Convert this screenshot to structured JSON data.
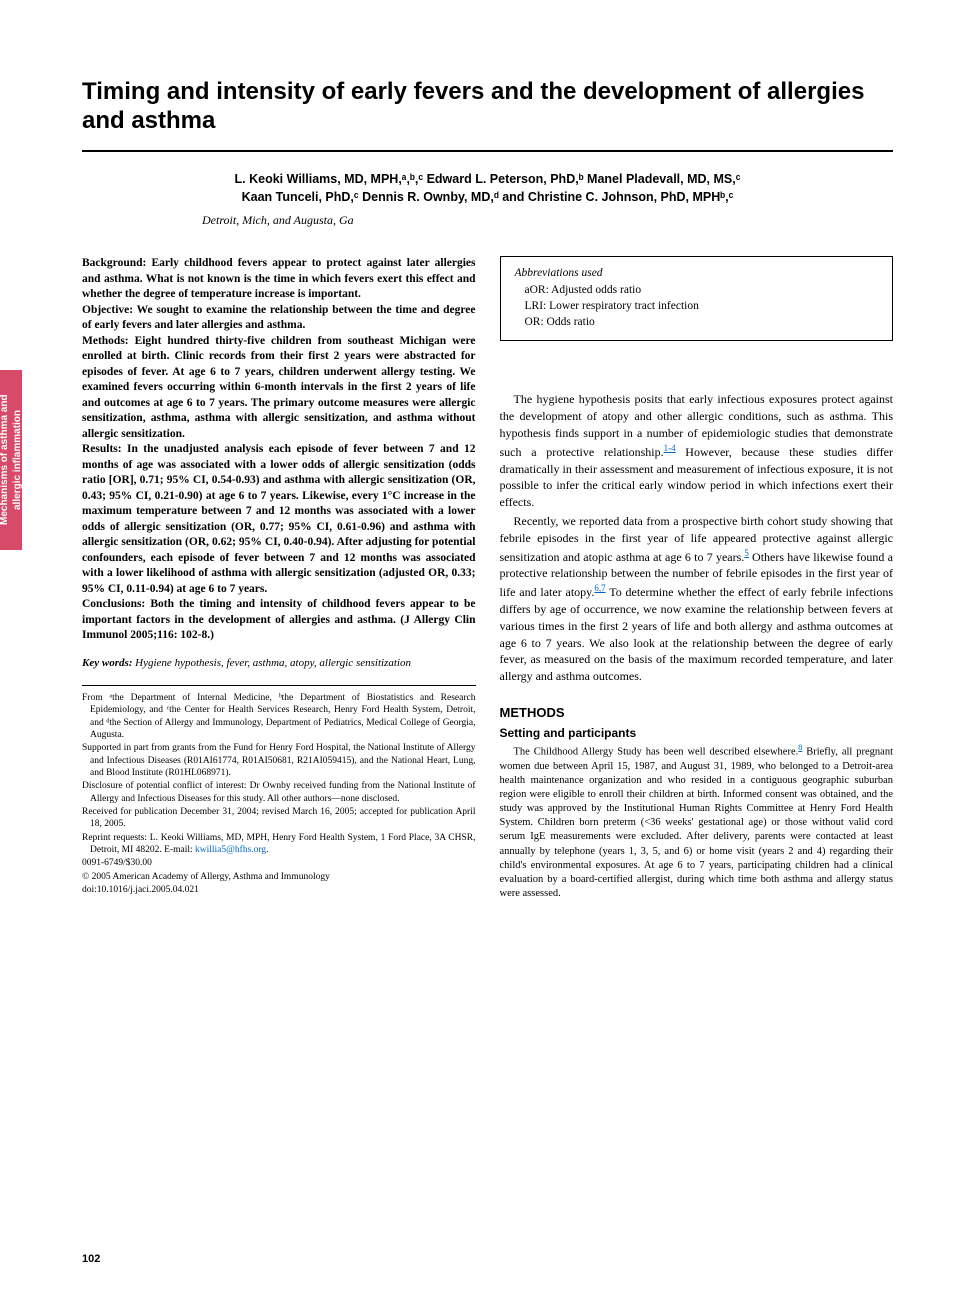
{
  "sideTab": "Mechanisms of asthma and allergic inflammation",
  "title": "Timing and intensity of early fevers and the development of allergies and asthma",
  "authorsLine1": "L. Keoki Williams, MD, MPH,ᵃ,ᵇ,ᶜ Edward L. Peterson, PhD,ᵇ Manel Pladevall, MD, MS,ᶜ",
  "authorsLine2": "Kaan Tunceli, PhD,ᶜ Dennis R. Ownby, MD,ᵈ and Christine C. Johnson, PhD, MPHᵇ,ᶜ",
  "locations": "Detroit, Mich, and Augusta, Ga",
  "abstract": {
    "background": "Background: Early childhood fevers appear to protect against later allergies and asthma. What is not known is the time in which fevers exert this effect and whether the degree of temperature increase is important.",
    "objective": "Objective: We sought to examine the relationship between the time and degree of early fevers and later allergies and asthma.",
    "methods": "Methods: Eight hundred thirty-five children from southeast Michigan were enrolled at birth. Clinic records from their first 2 years were abstracted for episodes of fever. At age 6 to 7 years, children underwent allergy testing. We examined fevers occurring within 6-month intervals in the first 2 years of life and outcomes at age 6 to 7 years. The primary outcome measures were allergic sensitization, asthma, asthma with allergic sensitization, and asthma without allergic sensitization.",
    "results": "Results: In the unadjusted analysis each episode of fever between 7 and 12 months of age was associated with a lower odds of allergic sensitization (odds ratio [OR], 0.71; 95% CI, 0.54-0.93) and asthma with allergic sensitization (OR, 0.43; 95% CI, 0.21-0.90) at age 6 to 7 years. Likewise, every 1°C increase in the maximum temperature between 7 and 12 months was associated with a lower odds of allergic sensitization (OR, 0.77; 95% CI, 0.61-0.96) and asthma with allergic sensitization (OR, 0.62; 95% CI, 0.40-0.94). After adjusting for potential confounders, each episode of fever between 7 and 12 months was associated with a lower likelihood of asthma with allergic sensitization (adjusted OR, 0.33; 95% CI, 0.11-0.94) at age 6 to 7 years.",
    "conclusions": "Conclusions: Both the timing and intensity of childhood fevers appear to be important factors in the development of allergies and asthma. (J Allergy Clin Immunol 2005;116: 102-8.)"
  },
  "keywordsLabel": "Key words:",
  "keywordsText": " Hygiene hypothesis, fever, asthma, atopy, allergic sensitization",
  "footnotes": {
    "from": "From ᵃthe Department of Internal Medicine, ᵇthe Department of Biostatistics and Research Epidemiology, and ᶜthe Center for Health Services Research, Henry Ford Health System, Detroit, and ᵈthe Section of Allergy and Immunology, Department of Pediatrics, Medical College of Georgia, Augusta.",
    "supported": "Supported in part from grants from the Fund for Henry Ford Hospital, the National Institute of Allergy and Infectious Diseases (R01AI61774, R01AI50681, R21AI059415), and the National Heart, Lung, and Blood Institute (R01HL068971).",
    "disclosure": "Disclosure of potential conflict of interest: Dr Ownby received funding from the National Institute of Allergy and Infectious Diseases for this study. All other authors—none disclosed.",
    "received": "Received for publication December 31, 2004; revised March 16, 2005; accepted for publication April 18, 2005.",
    "reprint": "Reprint requests: L. Keoki Williams, MD, MPH, Henry Ford Health System, 1 Ford Place, 3A CHSR, Detroit, MI 48202. E-mail: ",
    "email": "kwillia5@hfhs.org",
    "code": "0091-6749/$30.00",
    "copyright": "© 2005 American Academy of Allergy, Asthma and Immunology",
    "doi": "doi:10.1016/j.jaci.2005.04.021"
  },
  "abbreviations": {
    "title": "Abbreviations used",
    "items": [
      {
        "abbr": "aOR:",
        "def": "Adjusted odds ratio"
      },
      {
        "abbr": "LRI:",
        "def": "Lower respiratory tract infection"
      },
      {
        "abbr": "OR:",
        "def": "Odds ratio"
      }
    ]
  },
  "intro": {
    "p1a": "The hygiene hypothesis posits that early infectious exposures protect against the development of atopy and other allergic conditions, such as asthma. This hypothesis finds support in a number of epidemiologic studies that demonstrate such a protective relationship.",
    "ref1": "1-4",
    "p1b": " However, because these studies differ dramatically in their assessment and measurement of infectious exposure, it is not possible to infer the critical early window period in which infections exert their effects.",
    "p2a": "Recently, we reported data from a prospective birth cohort study showing that febrile episodes in the first year of life appeared protective against allergic sensitization and atopic asthma at age 6 to 7 years.",
    "ref2": "5",
    "p2b": " Others have likewise found a protective relationship between the number of febrile episodes in the first year of life and later atopy.",
    "ref3": "6,7",
    "p2c": " To determine whether the effect of early febrile infections differs by age of occurrence, we now examine the relationship between fevers at various times in the first 2 years of life and both allergy and asthma outcomes at age 6 to 7 years. We also look at the relationship between the degree of early fever, as measured on the basis of the maximum recorded temperature, and later allergy and asthma outcomes."
  },
  "methods": {
    "heading": "METHODS",
    "sub1": "Setting and participants",
    "p1a": "The Childhood Allergy Study has been well described elsewhere.",
    "ref1": "8",
    "p1b": " Briefly, all pregnant women due between April 15, 1987, and August 31, 1989, who belonged to a Detroit-area health maintenance organization and who resided in a contiguous geographic suburban region were eligible to enroll their children at birth. Informed consent was obtained, and the study was approved by the Institutional Human Rights Committee at Henry Ford Health System. Children born preterm (<36 weeks' gestational age) or those without valid cord serum IgE measurements were excluded. After delivery, parents were contacted at least annually by telephone (years 1, 3, 5, and 6) or home visit (years 2 and 4) regarding their child's environmental exposures. At age 6 to 7 years, participating children had a clinical evaluation by a board-certified allergist, during which time both asthma and allergy status were assessed."
  },
  "pageNumber": "102",
  "colors": {
    "sideTabBg": "#d84a6a",
    "sideTabText": "#ffffff",
    "linkColor": "#0066cc",
    "textColor": "#000000",
    "background": "#ffffff"
  }
}
